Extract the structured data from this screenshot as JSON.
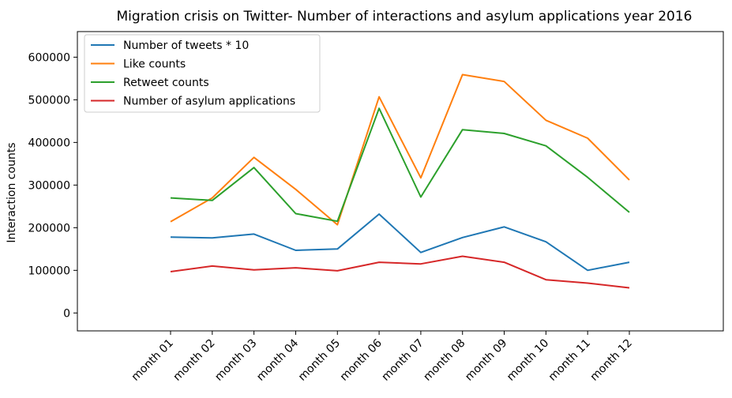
{
  "chart_data": {
    "type": "line",
    "title": "Migration crisis on Twitter- Number of interactions and asylum applications year 2016",
    "xlabel": "",
    "ylabel": "Interaction counts",
    "categories": [
      "month 01",
      "month 02",
      "month 03",
      "month 04",
      "month 05",
      "month 06",
      "month 07",
      "month 08",
      "month 09",
      "month 10",
      "month 11",
      "month 12"
    ],
    "yticks": [
      0,
      100000,
      200000,
      300000,
      400000,
      500000,
      600000
    ],
    "ytick_labels": [
      "0",
      "100000",
      "200000",
      "300000",
      "400000",
      "500000",
      "600000"
    ],
    "ylim": [
      -42000,
      660000
    ],
    "grid": false,
    "legend_position": "top-left",
    "series": [
      {
        "name": "Number of tweets * 10",
        "color": "#1f77b4",
        "values": [
          178000,
          176000,
          185000,
          147000,
          150000,
          232000,
          142000,
          177000,
          202000,
          167000,
          100000,
          119000
        ]
      },
      {
        "name": "Like counts",
        "color": "#ff7f0e",
        "values": [
          214000,
          270000,
          365000,
          290000,
          207000,
          507000,
          317000,
          559000,
          543000,
          452000,
          410000,
          312000
        ]
      },
      {
        "name": "Retweet counts",
        "color": "#2ca02c",
        "values": [
          270000,
          264000,
          341000,
          233000,
          215000,
          480000,
          272000,
          430000,
          421000,
          392000,
          318000,
          236000
        ]
      },
      {
        "name": "Number of asylum applications",
        "color": "#d62728",
        "values": [
          97000,
          110000,
          101000,
          106000,
          99000,
          119000,
          115000,
          133000,
          119000,
          78000,
          70000,
          59000
        ]
      }
    ]
  }
}
